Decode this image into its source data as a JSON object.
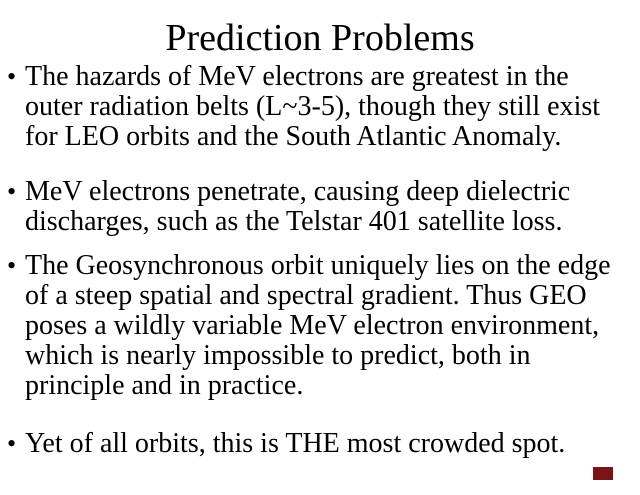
{
  "slide": {
    "title": "Prediction Problems",
    "bullet_char": "•",
    "bullets": [
      "The hazards of MeV electrons are greatest in the outer radiation belts (L~3-5), though they still exist for LEO orbits and the South Atlantic Anomaly.",
      "MeV electrons penetrate, causing deep dielectric discharges, such as the Telstar 401 satellite loss.",
      "The Geosynchronous orbit uniquely lies on the edge of a steep spatial and spectral gradient. Thus GEO poses a wildly variable MeV electron environment, which is nearly impossible to predict, both in principle and in practice.",
      "Yet of all orbits, this is THE most crowded spot."
    ],
    "colors": {
      "background": "#ffffff",
      "text": "#000000",
      "corner_marker": "#7a1216"
    }
  }
}
